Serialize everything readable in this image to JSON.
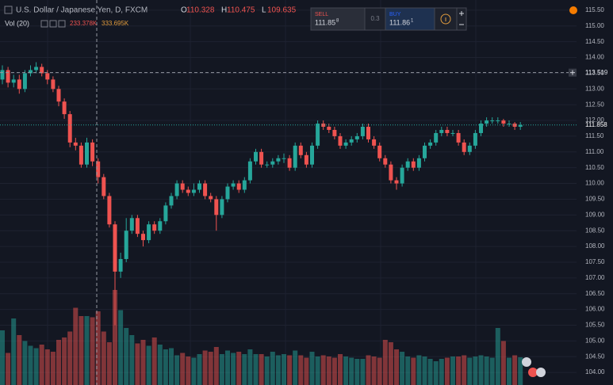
{
  "chart_data": {
    "type": "candlestick",
    "title": "U.S. Dollar / Japanese Yen, D, FXCM",
    "quote": [
      {
        "letter": "O",
        "value": "110.328"
      },
      {
        "letter": "H",
        "value": "110.475"
      },
      {
        "letter": "L",
        "value": "109.635"
      }
    ],
    "volume_title": "Vol (20)",
    "volume_readout": [
      "233.378K",
      "333.695K"
    ],
    "x": [
      null,
      null,
      null,
      null,
      null,
      null,
      null,
      null,
      null,
      null,
      null,
      null,
      null,
      null,
      null,
      null,
      null,
      null,
      null,
      null,
      null,
      null,
      null,
      null,
      null,
      null,
      null,
      null,
      null,
      null,
      null,
      null,
      null,
      null,
      null,
      null,
      null,
      null,
      null,
      null,
      null,
      null,
      null,
      null,
      null,
      null,
      null,
      null,
      null,
      null,
      null,
      null,
      null,
      null,
      null,
      null,
      null,
      null,
      null,
      null,
      null,
      null,
      null,
      null,
      null,
      null,
      null,
      null,
      null,
      null,
      null,
      null,
      null,
      null,
      null,
      null,
      null,
      null,
      null,
      null,
      null,
      null,
      null,
      null,
      null,
      null,
      null,
      null,
      null,
      null,
      null,
      null,
      null
    ],
    "open": [
      113.3,
      113.6,
      113.2,
      113.3,
      113.0,
      113.5,
      113.6,
      113.7,
      113.5,
      113.3,
      113.0,
      112.6,
      112.2,
      111.3,
      111.2,
      110.6,
      111.3,
      110.7,
      110.2,
      109.6,
      108.7,
      107.2,
      107.6,
      108.5,
      108.9,
      108.4,
      108.2,
      108.7,
      108.5,
      108.8,
      109.3,
      109.6,
      110.0,
      109.8,
      109.7,
      109.8,
      110.0,
      109.6,
      109.5,
      109.0,
      109.5,
      109.9,
      110.0,
      109.8,
      110.1,
      110.7,
      111.0,
      110.6,
      110.6,
      110.7,
      110.8,
      110.8,
      110.5,
      111.2,
      110.9,
      110.6,
      111.2,
      111.9,
      111.8,
      111.7,
      111.5,
      111.2,
      111.3,
      111.4,
      111.5,
      111.8,
      111.4,
      111.2,
      110.8,
      110.6,
      110.1,
      110.0,
      110.5,
      110.7,
      110.5,
      110.8,
      111.2,
      111.3,
      111.6,
      111.7,
      111.6,
      111.6,
      111.3,
      111.0,
      111.2,
      111.6,
      111.9,
      112.0,
      112.0,
      112.0,
      111.9,
      111.9,
      111.8
    ],
    "high": [
      113.75,
      113.7,
      113.45,
      113.45,
      113.6,
      113.75,
      113.85,
      113.8,
      113.6,
      113.4,
      113.1,
      112.7,
      112.3,
      111.45,
      111.3,
      111.45,
      111.4,
      110.8,
      110.3,
      109.7,
      108.8,
      107.8,
      108.9,
      109.0,
      109.0,
      108.5,
      108.8,
      108.8,
      108.9,
      109.4,
      109.7,
      110.1,
      110.1,
      109.9,
      110.0,
      110.1,
      110.1,
      109.7,
      109.6,
      109.6,
      110.0,
      110.1,
      110.1,
      110.2,
      110.8,
      111.1,
      111.1,
      110.7,
      110.8,
      110.9,
      110.95,
      110.9,
      111.3,
      111.3,
      111.0,
      111.3,
      112.0,
      112.0,
      111.9,
      111.8,
      111.6,
      111.4,
      111.5,
      111.6,
      111.9,
      111.9,
      111.5,
      111.3,
      110.9,
      110.7,
      110.2,
      110.6,
      110.8,
      110.8,
      110.9,
      111.3,
      111.4,
      111.7,
      111.8,
      111.8,
      111.7,
      111.7,
      111.4,
      111.3,
      111.7,
      112.0,
      112.1,
      112.1,
      112.1,
      112.05,
      112.0,
      111.95,
      111.95
    ],
    "low": [
      113.15,
      113.05,
      113.05,
      112.85,
      112.9,
      113.4,
      113.5,
      113.4,
      113.15,
      112.9,
      112.45,
      112.05,
      111.15,
      111.05,
      110.5,
      110.5,
      110.55,
      110.0,
      109.5,
      108.6,
      105.5,
      107.0,
      107.5,
      108.4,
      108.3,
      108.0,
      108.1,
      108.4,
      108.4,
      108.7,
      109.2,
      109.5,
      109.7,
      109.6,
      109.6,
      109.7,
      109.5,
      109.4,
      108.5,
      108.9,
      109.4,
      109.8,
      109.7,
      109.7,
      110.0,
      110.6,
      110.5,
      110.5,
      110.5,
      110.6,
      110.65,
      110.4,
      110.4,
      110.8,
      110.5,
      110.5,
      111.1,
      111.7,
      111.6,
      111.4,
      111.1,
      111.1,
      111.2,
      111.3,
      111.4,
      111.3,
      111.1,
      110.7,
      110.5,
      110.0,
      109.8,
      109.9,
      110.4,
      110.4,
      110.4,
      110.7,
      111.1,
      111.2,
      111.5,
      111.5,
      111.5,
      111.2,
      110.9,
      110.9,
      111.1,
      111.5,
      111.8,
      111.9,
      111.9,
      111.8,
      111.8,
      111.7,
      111.7
    ],
    "close": [
      113.6,
      113.2,
      113.3,
      113.0,
      113.5,
      113.6,
      113.7,
      113.5,
      113.3,
      113.0,
      112.6,
      112.2,
      111.3,
      111.2,
      110.6,
      111.3,
      110.7,
      110.2,
      109.6,
      108.7,
      107.2,
      107.6,
      108.5,
      108.9,
      108.4,
      108.2,
      108.7,
      108.5,
      108.8,
      109.3,
      109.6,
      110.0,
      109.8,
      109.7,
      109.8,
      110.0,
      109.6,
      109.5,
      109.0,
      109.5,
      109.9,
      110.0,
      109.8,
      110.1,
      110.7,
      111.0,
      110.6,
      110.6,
      110.7,
      110.8,
      110.8,
      110.5,
      111.2,
      110.9,
      110.6,
      111.2,
      111.9,
      111.8,
      111.7,
      111.5,
      111.2,
      111.3,
      111.4,
      111.5,
      111.8,
      111.4,
      111.2,
      110.8,
      110.6,
      110.1,
      110.0,
      110.5,
      110.7,
      110.5,
      110.8,
      111.2,
      111.3,
      111.6,
      111.7,
      111.6,
      111.6,
      111.3,
      111.0,
      111.2,
      111.6,
      111.9,
      112.0,
      112.0,
      112.0,
      111.9,
      111.9,
      111.8,
      111.86
    ],
    "volume": [
      460,
      270,
      560,
      420,
      370,
      330,
      310,
      340,
      300,
      280,
      380,
      400,
      450,
      650,
      580,
      580,
      570,
      620,
      450,
      360,
      800,
      630,
      480,
      420,
      350,
      380,
      330,
      400,
      340,
      300,
      310,
      250,
      270,
      240,
      230,
      260,
      290,
      280,
      320,
      260,
      290,
      270,
      280,
      260,
      300,
      260,
      260,
      240,
      280,
      250,
      260,
      250,
      290,
      250,
      230,
      280,
      240,
      250,
      240,
      230,
      260,
      240,
      230,
      220,
      220,
      250,
      240,
      230,
      380,
      360,
      300,
      280,
      240,
      230,
      250,
      240,
      220,
      200,
      220,
      230,
      240,
      240,
      250,
      230,
      240,
      250,
      240,
      230,
      480,
      370,
      230,
      250,
      233.378
    ],
    "up_color": "#26a69a",
    "down_color": "#ef5350",
    "ylim": [
      103.7,
      115.8
    ],
    "yticks": [
      {
        "value": 104,
        "label": "104.00"
      },
      {
        "value": 104.5,
        "label": "104.50"
      },
      {
        "value": 105,
        "label": "105.00"
      },
      {
        "value": 105.5,
        "label": "105.50"
      },
      {
        "value": 106,
        "label": "106.00"
      },
      {
        "value": 106.5,
        "label": "106.50"
      },
      {
        "value": 107,
        "label": "107.00"
      },
      {
        "value": 107.5,
        "label": "107.50"
      },
      {
        "value": 108,
        "label": "108.00"
      },
      {
        "value": 108.5,
        "label": "108.50"
      },
      {
        "value": 109,
        "label": "109.00"
      },
      {
        "value": 109.5,
        "label": "109.50"
      },
      {
        "value": 110,
        "label": "110.00"
      },
      {
        "value": 110.5,
        "label": "110.50"
      },
      {
        "value": 111,
        "label": "111.00"
      },
      {
        "value": 111.5,
        "label": "111.50"
      },
      {
        "value": 112,
        "label": "112.00"
      },
      {
        "value": 112.5,
        "label": "112.50"
      },
      {
        "value": 113,
        "label": "113.00"
      },
      {
        "value": 113.5,
        "label": "113.50"
      },
      {
        "value": 114,
        "label": "114.00"
      },
      {
        "value": 114.5,
        "label": "114.50"
      },
      {
        "value": 115,
        "label": "115.00"
      },
      {
        "value": 115.5,
        "label": "115.50"
      }
    ],
    "grid": true,
    "crosshair_price": 113.519,
    "last_price": 111.858
  },
  "trade": {
    "sell_label": "SELL",
    "sell_price": "111.85",
    "sell_sup": "8",
    "spread": "0.3",
    "buy_label": "BUY",
    "buy_price": "111.86",
    "buy_sup": "1"
  }
}
